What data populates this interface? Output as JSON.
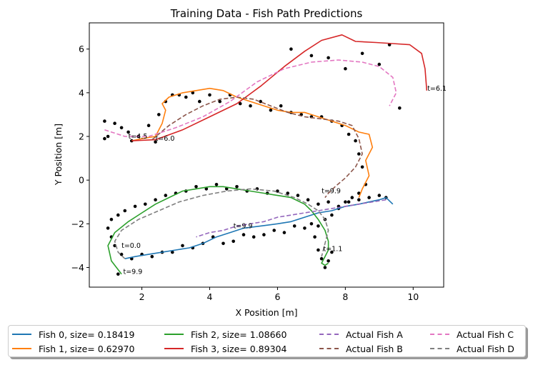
{
  "chart_data": {
    "type": "line",
    "title": "Training Data - Fish Path Predictions",
    "xlabel": "X Position [m]",
    "ylabel": "Y Position [m]",
    "xlim": [
      0.45,
      10.9
    ],
    "ylim": [
      -4.9,
      7.2
    ],
    "xticks": [
      2,
      4,
      6,
      8,
      10
    ],
    "yticks": [
      -4,
      -2,
      0,
      2,
      4,
      6
    ],
    "grid": false,
    "legend_position": "bottom-center",
    "series": [
      {
        "name": "Fish 0, size= 0.18419",
        "style": "solid",
        "color": "#1f77b4",
        "x": [
          9.4,
          9.2,
          9.0,
          8.7,
          8.4,
          8.0,
          7.6,
          7.2,
          6.8,
          6.4,
          6.0,
          5.5,
          5.0,
          4.6,
          4.2,
          3.8,
          3.4,
          3.0,
          2.6,
          2.2,
          1.8,
          1.5
        ],
        "y": [
          -1.1,
          -0.8,
          -0.9,
          -1.0,
          -1.1,
          -1.2,
          -1.4,
          -1.5,
          -1.7,
          -1.9,
          -2.0,
          -2.1,
          -2.2,
          -2.4,
          -2.6,
          -2.9,
          -3.1,
          -3.2,
          -3.3,
          -3.4,
          -3.5,
          -3.6
        ]
      },
      {
        "name": "Fish 1, size= 0.62970",
        "style": "solid",
        "color": "#ff7f0e",
        "x": [
          1.7,
          2.0,
          2.4,
          2.6,
          2.7,
          2.6,
          2.8,
          3.2,
          3.6,
          4.0,
          4.4,
          4.8,
          5.2,
          5.6,
          6.0,
          6.4,
          6.8,
          7.2,
          7.6,
          8.0,
          8.4,
          8.7,
          8.8,
          8.6,
          8.7,
          8.5,
          8.4
        ],
        "y": [
          1.8,
          1.9,
          2.0,
          2.6,
          3.2,
          3.5,
          3.8,
          4.0,
          4.1,
          4.2,
          4.1,
          3.8,
          3.6,
          3.4,
          3.2,
          3.1,
          3.1,
          2.9,
          2.7,
          2.5,
          2.2,
          2.1,
          1.5,
          0.9,
          0.2,
          -0.4,
          -0.8
        ]
      },
      {
        "name": "Fish 2, size= 1.08660",
        "style": "solid",
        "color": "#2ca02c",
        "x": [
          1.4,
          1.1,
          1.0,
          1.2,
          1.6,
          2.0,
          2.4,
          2.8,
          3.2,
          3.6,
          4.0,
          4.4,
          4.8,
          5.2,
          5.6,
          6.0,
          6.4,
          6.8,
          7.0,
          7.2,
          7.4,
          7.5,
          7.5,
          7.4,
          7.3,
          7.4,
          7.5
        ],
        "y": [
          -4.3,
          -3.7,
          -3.0,
          -2.4,
          -1.9,
          -1.5,
          -1.1,
          -0.8,
          -0.5,
          -0.4,
          -0.3,
          -0.3,
          -0.4,
          -0.5,
          -0.6,
          -0.7,
          -0.8,
          -1.1,
          -1.4,
          -1.8,
          -2.3,
          -2.8,
          -3.2,
          -3.5,
          -3.8,
          -3.9,
          -3.8
        ]
      },
      {
        "name": "Fish 3, size= 0.89304",
        "style": "solid",
        "color": "#d62728",
        "x": [
          1.7,
          2.4,
          3.2,
          4.0,
          4.8,
          5.5,
          6.2,
          6.8,
          7.3,
          7.9,
          8.3,
          8.9,
          9.4,
          9.9,
          10.25,
          10.35,
          10.4
        ],
        "y": [
          1.8,
          1.85,
          2.3,
          2.9,
          3.5,
          4.3,
          5.2,
          5.9,
          6.4,
          6.65,
          6.35,
          6.3,
          6.25,
          6.2,
          5.8,
          5.1,
          4.1
        ]
      },
      {
        "name": "Actual Fish A",
        "style": "dashed",
        "color": "#9467bd",
        "x": [
          9.2,
          8.8,
          8.4,
          8.0,
          7.6,
          7.2,
          6.8,
          6.4,
          6.0,
          5.6,
          5.2,
          4.8,
          4.4,
          4.0,
          3.6
        ],
        "y": [
          -0.9,
          -1.0,
          -1.1,
          -1.2,
          -1.3,
          -1.4,
          -1.5,
          -1.6,
          -1.7,
          -1.9,
          -2.0,
          -2.1,
          -2.3,
          -2.4,
          -2.6
        ]
      },
      {
        "name": "Actual Fish B",
        "style": "dashed",
        "color": "#8c564b",
        "x": [
          2.3,
          2.8,
          3.3,
          3.8,
          4.3,
          4.8,
          5.3,
          5.8,
          6.3,
          6.8,
          7.3,
          7.8,
          8.2,
          8.4,
          8.5,
          8.3,
          8.0,
          7.7,
          7.5,
          7.4
        ],
        "y": [
          1.85,
          2.5,
          3.0,
          3.4,
          3.7,
          3.8,
          3.7,
          3.4,
          3.1,
          2.9,
          2.8,
          2.7,
          2.5,
          1.9,
          1.2,
          0.6,
          0.1,
          -0.3,
          -0.6,
          -0.8
        ]
      },
      {
        "name": "Actual Fish C",
        "style": "dashed",
        "color": "#e377c2",
        "x": [
          0.9,
          1.5,
          2.2,
          3.0,
          3.8,
          4.6,
          5.4,
          6.2,
          7.0,
          7.8,
          8.5,
          9.0,
          9.4,
          9.5,
          9.3
        ],
        "y": [
          2.3,
          2.0,
          2.0,
          2.4,
          2.9,
          3.6,
          4.5,
          5.1,
          5.4,
          5.5,
          5.4,
          5.2,
          4.7,
          4.0,
          3.4
        ]
      },
      {
        "name": "Actual Fish D",
        "style": "dashed",
        "color": "#7f7f7f",
        "x": [
          1.5,
          1.3,
          1.2,
          1.4,
          1.9,
          2.5,
          3.1,
          3.8,
          4.5,
          5.2,
          5.9,
          6.5,
          6.9,
          7.2,
          7.4,
          7.5,
          7.4,
          7.3
        ],
        "y": [
          -3.6,
          -3.3,
          -2.8,
          -2.3,
          -1.8,
          -1.4,
          -1.0,
          -0.7,
          -0.5,
          -0.4,
          -0.5,
          -0.8,
          -1.1,
          -1.4,
          -1.8,
          -2.3,
          -2.9,
          -3.5
        ]
      }
    ],
    "observations": {
      "name": "observed points",
      "color": "#000000",
      "x": [
        0.9,
        1.0,
        1.2,
        1.4,
        1.6,
        1.9,
        2.2,
        2.5,
        2.7,
        2.9,
        3.1,
        3.3,
        3.5,
        3.7,
        4.0,
        4.3,
        4.6,
        4.9,
        5.2,
        5.5,
        5.8,
        6.1,
        6.4,
        6.7,
        7.0,
        7.3,
        7.6,
        7.9,
        8.1,
        8.3,
        8.4,
        8.5,
        8.6,
        8.4,
        8.2,
        8.0,
        7.8,
        7.6,
        7.4,
        7.2,
        7.0,
        6.8,
        6.5,
        6.2,
        5.9,
        5.6,
        5.3,
        5.0,
        4.7,
        4.4,
        4.1,
        3.8,
        3.5,
        3.2,
        2.9,
        2.6,
        2.3,
        2.0,
        1.7,
        1.4,
        1.2,
        1.1,
        1.0,
        1.1,
        1.3,
        1.5,
        1.8,
        2.1,
        2.4,
        2.7,
        3.0,
        3.3,
        3.6,
        3.9,
        4.2,
        4.5,
        4.8,
        5.1,
        5.4,
        5.7,
        6.0,
        6.3,
        6.6,
        6.9,
        7.2,
        7.5,
        7.8,
        8.1,
        8.4,
        8.7,
        9.0,
        9.2,
        7.1,
        7.2,
        7.3,
        7.4,
        7.5,
        7.6,
        6.4,
        7.0,
        7.5,
        8.0,
        8.5,
        9.0,
        9.6,
        9.3,
        1.3,
        0.9,
        1.7,
        2.4
      ],
      "y": [
        2.7,
        2.0,
        2.6,
        2.4,
        2.2,
        2.0,
        2.5,
        3.0,
        3.6,
        3.9,
        3.9,
        3.8,
        4.0,
        3.6,
        3.9,
        3.6,
        3.9,
        3.5,
        3.4,
        3.6,
        3.2,
        3.4,
        3.1,
        3.0,
        2.9,
        2.9,
        2.7,
        2.5,
        2.1,
        1.8,
        1.2,
        0.6,
        -0.2,
        -0.6,
        -0.8,
        -1.0,
        -1.3,
        -1.6,
        -1.8,
        -2.1,
        -2.0,
        -2.2,
        -2.1,
        -2.4,
        -2.3,
        -2.5,
        -2.6,
        -2.5,
        -2.8,
        -2.9,
        -2.6,
        -2.9,
        -3.1,
        -3.0,
        -3.3,
        -3.3,
        -3.5,
        -3.4,
        -3.6,
        -3.4,
        -3.0,
        -2.6,
        -2.2,
        -1.8,
        -1.6,
        -1.4,
        -1.2,
        -1.1,
        -0.9,
        -0.7,
        -0.6,
        -0.5,
        -0.3,
        -0.4,
        -0.2,
        -0.4,
        -0.3,
        -0.5,
        -0.4,
        -0.6,
        -0.5,
        -0.6,
        -0.7,
        -0.9,
        -1.1,
        -1.0,
        -1.2,
        -1.0,
        -0.9,
        -0.8,
        -0.7,
        -0.8,
        -2.6,
        -3.2,
        -3.6,
        -4.0,
        -3.7,
        -3.3,
        6.0,
        5.7,
        5.6,
        5.1,
        5.8,
        5.3,
        3.3,
        6.2,
        -4.3,
        1.9,
        1.8,
        1.75
      ]
    },
    "annotations": [
      {
        "text": "t=4.5",
        "x": 1.6,
        "y": 1.9
      },
      {
        "text": "t=6.0",
        "x": 2.4,
        "y": 1.8
      },
      {
        "text": "t=6.1",
        "x": 10.42,
        "y": 4.1
      },
      {
        "text": "t=9.9",
        "x": 7.3,
        "y": -0.6
      },
      {
        "text": "t=9.9",
        "x": 4.7,
        "y": -2.2
      },
      {
        "text": "t=0.0",
        "x": 1.4,
        "y": -3.1
      },
      {
        "text": "t=9.9",
        "x": 1.45,
        "y": -4.3
      },
      {
        "text": "t=1.1",
        "x": 7.35,
        "y": -3.25
      }
    ]
  },
  "legend": {
    "entries": [
      {
        "label": "Fish 0, size= 0.18419",
        "color": "#1f77b4",
        "style": "solid"
      },
      {
        "label": "Fish 1, size= 0.62970",
        "color": "#ff7f0e",
        "style": "solid"
      },
      {
        "label": "Fish 2, size= 1.08660",
        "color": "#2ca02c",
        "style": "solid"
      },
      {
        "label": "Fish 3, size= 0.89304",
        "color": "#d62728",
        "style": "solid"
      },
      {
        "label": "Actual Fish A",
        "color": "#9467bd",
        "style": "dashed"
      },
      {
        "label": "Actual Fish B",
        "color": "#8c564b",
        "style": "dashed"
      },
      {
        "label": "Actual Fish C",
        "color": "#e377c2",
        "style": "dashed"
      },
      {
        "label": "Actual Fish D",
        "color": "#7f7f7f",
        "style": "dashed"
      }
    ]
  }
}
